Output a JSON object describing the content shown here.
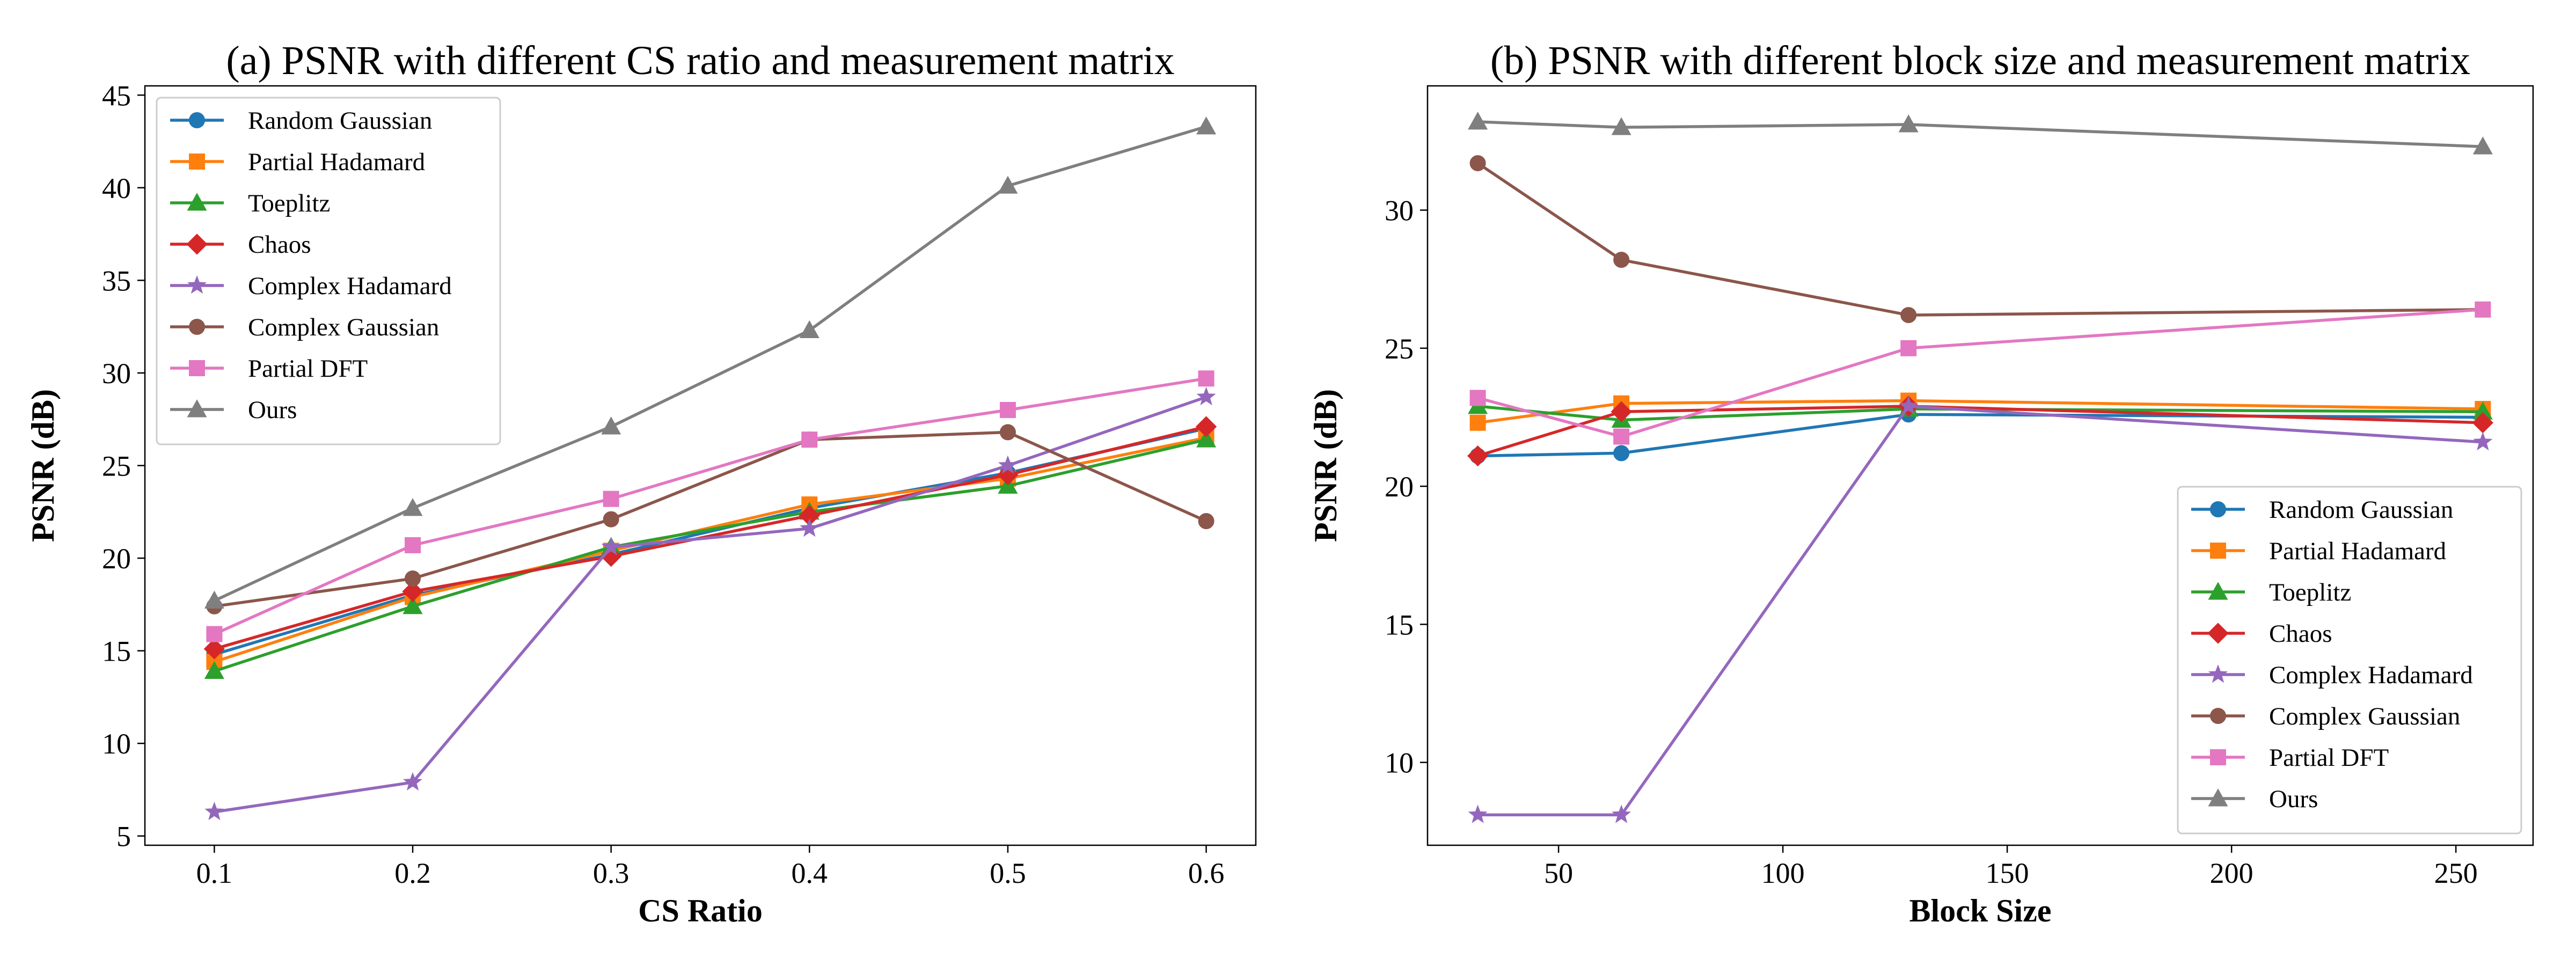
{
  "chart_data": [
    {
      "type": "line",
      "title": "(a) PSNR with different CS ratio and measurement matrix",
      "xlabel": "CS Ratio",
      "ylabel": "PSNR (dB)",
      "xlim": [
        0.065,
        0.625
      ],
      "ylim": [
        4.5,
        45.5
      ],
      "xticks": [
        0.1,
        0.2,
        0.3,
        0.4,
        0.5,
        0.6
      ],
      "yticks": [
        5,
        10,
        15,
        20,
        25,
        30,
        35,
        40,
        45
      ],
      "legend_position": "upper-left",
      "x": [
        0.1,
        0.2,
        0.3,
        0.4,
        0.5,
        0.6
      ],
      "series": [
        {
          "name": "Random Gaussian",
          "color": "#1f77b4",
          "marker": "circle",
          "values": [
            14.8,
            18.0,
            20.2,
            22.7,
            24.6,
            27.0
          ]
        },
        {
          "name": "Partial Hadamard",
          "color": "#ff7f0e",
          "marker": "square",
          "values": [
            14.4,
            17.9,
            20.4,
            22.9,
            24.3,
            26.5
          ]
        },
        {
          "name": "Toeplitz",
          "color": "#2ca02c",
          "marker": "triangle",
          "values": [
            13.9,
            17.4,
            20.6,
            22.5,
            23.9,
            26.4
          ]
        },
        {
          "name": "Chaos",
          "color": "#d62728",
          "marker": "diamond",
          "values": [
            15.1,
            18.2,
            20.1,
            22.3,
            24.5,
            27.1
          ]
        },
        {
          "name": "Complex Hadamard",
          "color": "#9467bd",
          "marker": "star",
          "values": [
            6.3,
            7.9,
            20.6,
            21.6,
            25.0,
            28.7
          ]
        },
        {
          "name": "Complex Gaussian",
          "color": "#8c564b",
          "marker": "circle",
          "values": [
            17.4,
            18.9,
            22.1,
            26.4,
            26.8,
            22.0
          ]
        },
        {
          "name": "Partial DFT",
          "color": "#e377c2",
          "marker": "square",
          "values": [
            15.9,
            20.7,
            23.2,
            26.4,
            28.0,
            29.7
          ]
        },
        {
          "name": "Ours",
          "color": "#7f7f7f",
          "marker": "triangle",
          "values": [
            17.7,
            22.7,
            27.1,
            32.3,
            40.1,
            43.3
          ]
        }
      ]
    },
    {
      "type": "line",
      "title": "(b) PSNR with different block size and measurement matrix",
      "xlabel": "Block Size",
      "ylabel": "PSNR (dB)",
      "xlim": [
        20.8,
        267.2
      ],
      "ylim": [
        7.0,
        34.5
      ],
      "xticks": [
        50,
        100,
        150,
        200,
        250
      ],
      "yticks": [
        10,
        15,
        20,
        25,
        30
      ],
      "legend_position": "lower-right",
      "x": [
        32,
        64,
        128,
        256
      ],
      "series": [
        {
          "name": "Random Gaussian",
          "color": "#1f77b4",
          "marker": "circle",
          "values": [
            21.1,
            21.2,
            22.6,
            22.5
          ]
        },
        {
          "name": "Partial Hadamard",
          "color": "#ff7f0e",
          "marker": "square",
          "values": [
            22.3,
            23.0,
            23.1,
            22.8
          ]
        },
        {
          "name": "Toeplitz",
          "color": "#2ca02c",
          "marker": "triangle",
          "values": [
            22.9,
            22.4,
            22.8,
            22.7
          ]
        },
        {
          "name": "Chaos",
          "color": "#d62728",
          "marker": "diamond",
          "values": [
            21.1,
            22.7,
            22.9,
            22.3
          ]
        },
        {
          "name": "Complex Hadamard",
          "color": "#9467bd",
          "marker": "star",
          "values": [
            8.1,
            8.1,
            22.9,
            21.6
          ]
        },
        {
          "name": "Complex Gaussian",
          "color": "#8c564b",
          "marker": "circle",
          "values": [
            31.7,
            28.2,
            26.2,
            26.4
          ]
        },
        {
          "name": "Partial DFT",
          "color": "#e377c2",
          "marker": "square",
          "values": [
            23.2,
            21.8,
            25.0,
            26.4
          ]
        },
        {
          "name": "Ours",
          "color": "#7f7f7f",
          "marker": "triangle",
          "values": [
            33.2,
            33.0,
            33.1,
            32.3
          ]
        }
      ]
    }
  ]
}
